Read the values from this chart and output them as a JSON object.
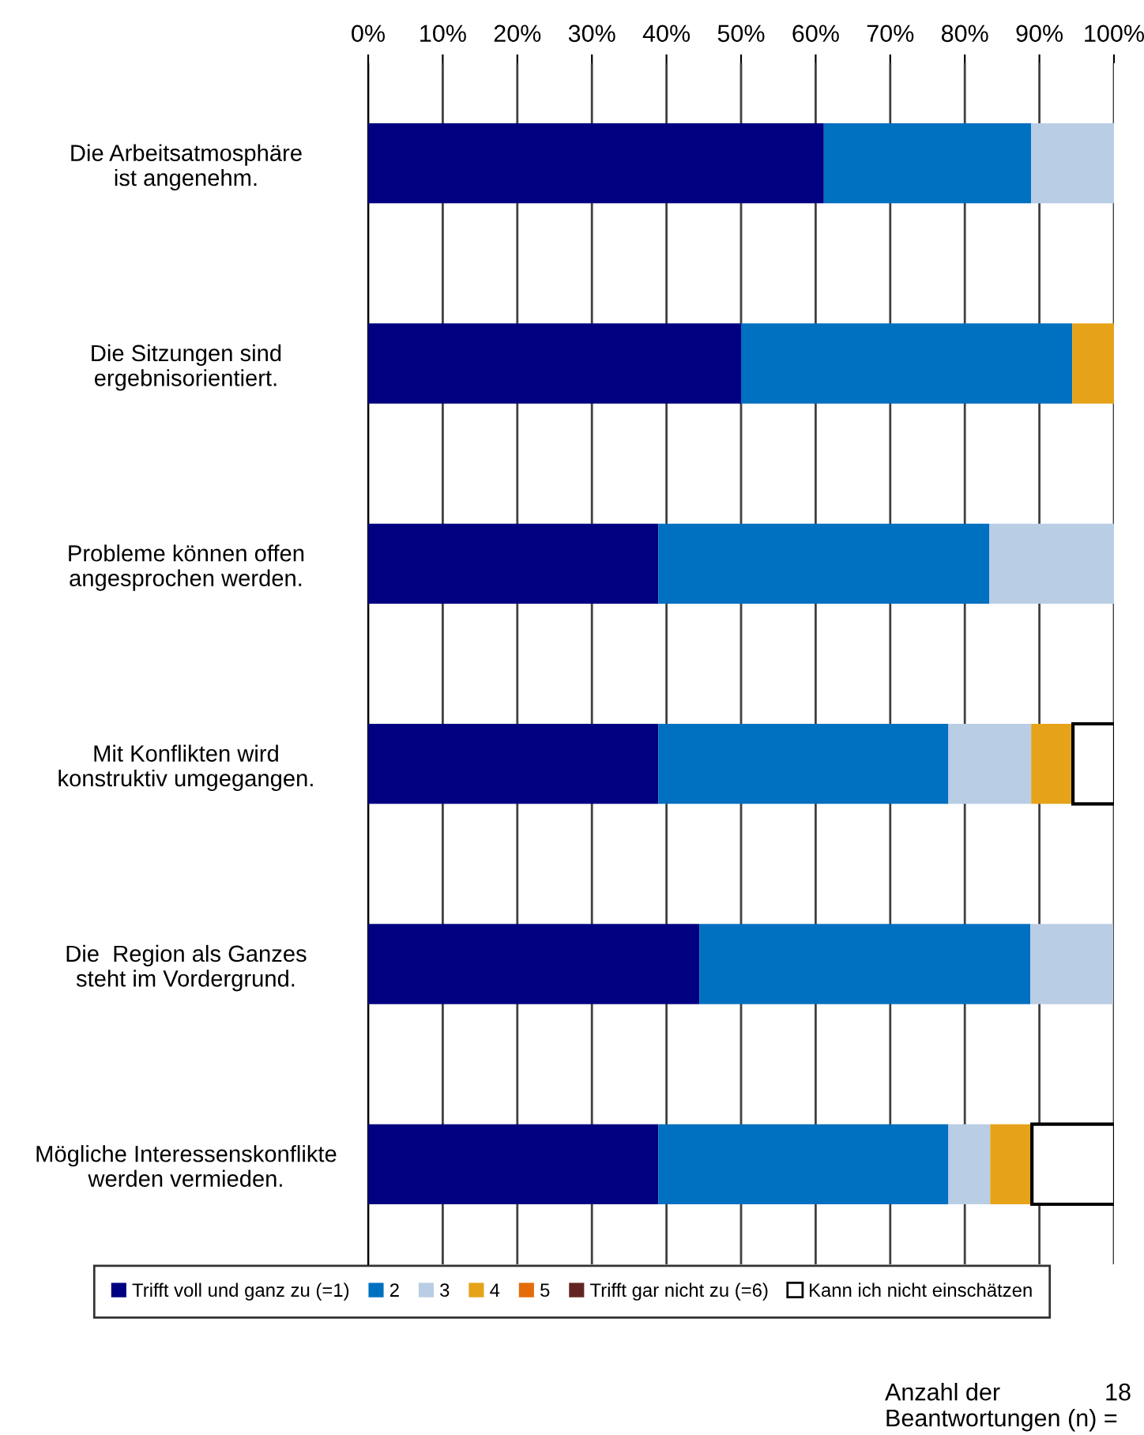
{
  "chart_data": {
    "type": "bar",
    "orientation": "horizontal",
    "stacked": true,
    "categories": [
      "Die Arbeitsatmosphäre\nist angenehm.",
      "Die Sitzungen sind\nergebnisorientiert.",
      "Probleme können offen\nangesprochen werden.",
      "Mit Konflikten wird\nkonstruktiv umgegangen.",
      "Die  Region als Ganzes\nsteht im Vordergrund.",
      "Mögliche Interessenskonflikte\nwerden vermieden."
    ],
    "series": [
      {
        "name": "Trifft voll und ganz zu (=1)",
        "color": "#000080",
        "values": [
          61.1,
          50.0,
          38.9,
          38.9,
          44.4,
          38.9
        ]
      },
      {
        "name": "2",
        "color": "#0070c0",
        "values": [
          27.8,
          44.4,
          44.4,
          38.9,
          44.4,
          38.9
        ]
      },
      {
        "name": "3",
        "color": "#b9cde5",
        "values": [
          11.1,
          0,
          16.7,
          11.1,
          11.1,
          5.6
        ]
      },
      {
        "name": "4",
        "color": "#e6a31a",
        "values": [
          0,
          5.6,
          0,
          5.6,
          0,
          5.6
        ]
      },
      {
        "name": "5",
        "color": "#e46c0a",
        "values": [
          0,
          0,
          0,
          0,
          0,
          0
        ]
      },
      {
        "name": "Trifft gar nicht zu (=6)",
        "color": "#632523",
        "values": [
          0,
          0,
          0,
          0,
          0,
          0
        ]
      },
      {
        "name": "Kann ich nicht einschätzen",
        "color": "#ffffff",
        "values": [
          0,
          0,
          0,
          5.6,
          0,
          11.1
        ]
      }
    ],
    "xlim": [
      0,
      100
    ],
    "xticks": [
      {
        "value": 0,
        "label": "0%"
      },
      {
        "value": 10,
        "label": "10%"
      },
      {
        "value": 20,
        "label": "20%"
      },
      {
        "value": 30,
        "label": "30%"
      },
      {
        "value": 40,
        "label": "40%"
      },
      {
        "value": 50,
        "label": "50%"
      },
      {
        "value": 60,
        "label": "60%"
      },
      {
        "value": 70,
        "label": "70%"
      },
      {
        "value": 80,
        "label": "80%"
      },
      {
        "value": 90,
        "label": "90%"
      },
      {
        "value": 100,
        "label": "100%"
      }
    ],
    "grid": "x",
    "legend": "bottom",
    "annotations": [
      "Anzahl der\nBeantwortungen (n) =",
      "18"
    ]
  }
}
